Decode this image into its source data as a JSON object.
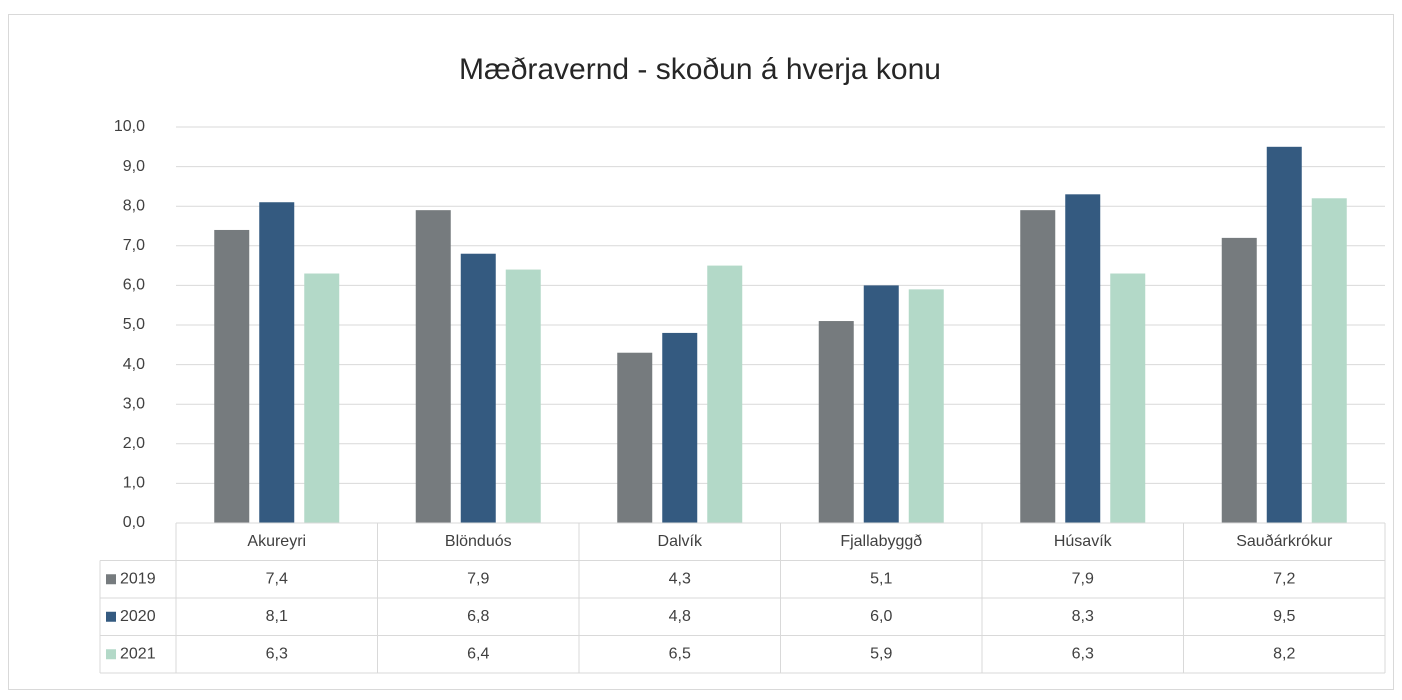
{
  "chart_data": {
    "type": "bar",
    "title": "Mæðravernd - skoðun á hverja konu",
    "categories": [
      "Akureyri",
      "Blönduós",
      "Dalvík",
      "Fjallabyggð",
      "Húsavík",
      "Sauðárkrókur"
    ],
    "series": [
      {
        "name": "2019",
        "color": "#767b7e",
        "values": [
          7.4,
          7.9,
          4.3,
          5.1,
          7.9,
          7.2
        ],
        "value_labels": [
          "7,4",
          "7,9",
          "4,3",
          "5,1",
          "7,9",
          "7,2"
        ]
      },
      {
        "name": "2020",
        "color": "#345a80",
        "values": [
          8.1,
          6.8,
          4.8,
          6.0,
          8.3,
          9.5
        ],
        "value_labels": [
          "8,1",
          "6,8",
          "4,8",
          "6,0",
          "8,3",
          "9,5"
        ]
      },
      {
        "name": "2021",
        "color": "#b3d9c8",
        "values": [
          6.3,
          6.4,
          6.5,
          5.9,
          6.3,
          8.2
        ],
        "value_labels": [
          "6,3",
          "6,4",
          "6,5",
          "5,9",
          "6,3",
          "8,2"
        ]
      }
    ],
    "ylim": [
      0,
      10
    ],
    "yticks": [
      {
        "value": 0,
        "label": "0,0"
      },
      {
        "value": 1,
        "label": "1,0"
      },
      {
        "value": 2,
        "label": "2,0"
      },
      {
        "value": 3,
        "label": "3,0"
      },
      {
        "value": 4,
        "label": "4,0"
      },
      {
        "value": 5,
        "label": "5,0"
      },
      {
        "value": 6,
        "label": "6,0"
      },
      {
        "value": 7,
        "label": "7,0"
      },
      {
        "value": 8,
        "label": "8,0"
      },
      {
        "value": 9,
        "label": "9,0"
      },
      {
        "value": 10,
        "label": "10,0"
      }
    ],
    "grid": true
  }
}
